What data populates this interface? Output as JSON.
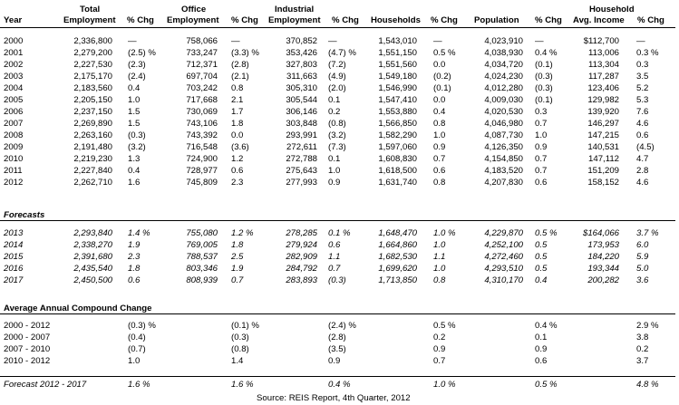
{
  "header": {
    "year": "Year",
    "total_employment": [
      "Total",
      "Employment"
    ],
    "office_employment": [
      "Office",
      "Employment"
    ],
    "industrial_employment": [
      "Industrial",
      "Employment"
    ],
    "households": "Households",
    "population": "Population",
    "household_income": [
      "Household",
      "Avg. Income"
    ],
    "pct_chg": "% Chg"
  },
  "historical": [
    {
      "year": "2000",
      "total": "2,336,800",
      "total_chg": "—",
      "office": "758,066",
      "office_chg": "—",
      "industrial": "370,852",
      "industrial_chg": "—",
      "households": "1,543,010",
      "households_chg": "—",
      "population": "4,023,910",
      "population_chg": "—",
      "income": "$112,700",
      "income_chg": "—"
    },
    {
      "year": "2001",
      "total": "2,279,200",
      "total_chg": "(2.5) %",
      "office": "733,247",
      "office_chg": "(3.3) %",
      "industrial": "353,426",
      "industrial_chg": "(4.7) %",
      "households": "1,551,150",
      "households_chg": "0.5 %",
      "population": "4,038,930",
      "population_chg": "0.4 %",
      "income": "113,006",
      "income_chg": "0.3 %"
    },
    {
      "year": "2002",
      "total": "2,227,530",
      "total_chg": "(2.3)",
      "office": "712,371",
      "office_chg": "(2.8)",
      "industrial": "327,803",
      "industrial_chg": "(7.2)",
      "households": "1,551,560",
      "households_chg": "0.0",
      "population": "4,034,720",
      "population_chg": "(0.1)",
      "income": "113,304",
      "income_chg": "0.3"
    },
    {
      "year": "2003",
      "total": "2,175,170",
      "total_chg": "(2.4)",
      "office": "697,704",
      "office_chg": "(2.1)",
      "industrial": "311,663",
      "industrial_chg": "(4.9)",
      "households": "1,549,180",
      "households_chg": "(0.2)",
      "population": "4,024,230",
      "population_chg": "(0.3)",
      "income": "117,287",
      "income_chg": "3.5"
    },
    {
      "year": "2004",
      "total": "2,183,560",
      "total_chg": "0.4",
      "office": "703,242",
      "office_chg": "0.8",
      "industrial": "305,310",
      "industrial_chg": "(2.0)",
      "households": "1,546,990",
      "households_chg": "(0.1)",
      "population": "4,012,280",
      "population_chg": "(0.3)",
      "income": "123,406",
      "income_chg": "5.2"
    },
    {
      "year": "2005",
      "total": "2,205,150",
      "total_chg": "1.0",
      "office": "717,668",
      "office_chg": "2.1",
      "industrial": "305,544",
      "industrial_chg": "0.1",
      "households": "1,547,410",
      "households_chg": "0.0",
      "population": "4,009,030",
      "population_chg": "(0.1)",
      "income": "129,982",
      "income_chg": "5.3"
    },
    {
      "year": "2006",
      "total": "2,237,150",
      "total_chg": "1.5",
      "office": "730,069",
      "office_chg": "1.7",
      "industrial": "306,146",
      "industrial_chg": "0.2",
      "households": "1,553,880",
      "households_chg": "0.4",
      "population": "4,020,530",
      "population_chg": "0.3",
      "income": "139,920",
      "income_chg": "7.6"
    },
    {
      "year": "2007",
      "total": "2,269,890",
      "total_chg": "1.5",
      "office": "743,106",
      "office_chg": "1.8",
      "industrial": "303,848",
      "industrial_chg": "(0.8)",
      "households": "1,566,850",
      "households_chg": "0.8",
      "population": "4,046,980",
      "population_chg": "0.7",
      "income": "146,297",
      "income_chg": "4.6"
    },
    {
      "year": "2008",
      "total": "2,263,160",
      "total_chg": "(0.3)",
      "office": "743,392",
      "office_chg": "0.0",
      "industrial": "293,991",
      "industrial_chg": "(3.2)",
      "households": "1,582,290",
      "households_chg": "1.0",
      "population": "4,087,730",
      "population_chg": "1.0",
      "income": "147,215",
      "income_chg": "0.6"
    },
    {
      "year": "2009",
      "total": "2,191,480",
      "total_chg": "(3.2)",
      "office": "716,548",
      "office_chg": "(3.6)",
      "industrial": "272,611",
      "industrial_chg": "(7.3)",
      "households": "1,597,060",
      "households_chg": "0.9",
      "population": "4,126,350",
      "population_chg": "0.9",
      "income": "140,531",
      "income_chg": "(4.5)"
    },
    {
      "year": "2010",
      "total": "2,219,230",
      "total_chg": "1.3",
      "office": "724,900",
      "office_chg": "1.2",
      "industrial": "272,788",
      "industrial_chg": "0.1",
      "households": "1,608,830",
      "households_chg": "0.7",
      "population": "4,154,850",
      "population_chg": "0.7",
      "income": "147,112",
      "income_chg": "4.7"
    },
    {
      "year": "2011",
      "total": "2,227,840",
      "total_chg": "0.4",
      "office": "728,977",
      "office_chg": "0.6",
      "industrial": "275,643",
      "industrial_chg": "1.0",
      "households": "1,618,500",
      "households_chg": "0.6",
      "population": "4,183,520",
      "population_chg": "0.7",
      "income": "151,209",
      "income_chg": "2.8"
    },
    {
      "year": "2012",
      "total": "2,262,710",
      "total_chg": "1.6",
      "office": "745,809",
      "office_chg": "2.3",
      "industrial": "277,993",
      "industrial_chg": "0.9",
      "households": "1,631,740",
      "households_chg": "0.8",
      "population": "4,207,830",
      "population_chg": "0.6",
      "income": "158,152",
      "income_chg": "4.6"
    }
  ],
  "forecasts_label": "Forecasts",
  "forecasts": [
    {
      "year": "2013",
      "total": "2,293,840",
      "total_chg": "1.4 %",
      "office": "755,080",
      "office_chg": "1.2 %",
      "industrial": "278,285",
      "industrial_chg": "0.1 %",
      "households": "1,648,470",
      "households_chg": "1.0 %",
      "population": "4,229,870",
      "population_chg": "0.5 %",
      "income": "$164,066",
      "income_chg": "3.7 %"
    },
    {
      "year": "2014",
      "total": "2,338,270",
      "total_chg": "1.9",
      "office": "769,005",
      "office_chg": "1.8",
      "industrial": "279,924",
      "industrial_chg": "0.6",
      "households": "1,664,860",
      "households_chg": "1.0",
      "population": "4,252,100",
      "population_chg": "0.5",
      "income": "173,953",
      "income_chg": "6.0"
    },
    {
      "year": "2015",
      "total": "2,391,680",
      "total_chg": "2.3",
      "office": "788,537",
      "office_chg": "2.5",
      "industrial": "282,909",
      "industrial_chg": "1.1",
      "households": "1,682,530",
      "households_chg": "1.1",
      "population": "4,272,460",
      "population_chg": "0.5",
      "income": "184,220",
      "income_chg": "5.9"
    },
    {
      "year": "2016",
      "total": "2,435,540",
      "total_chg": "1.8",
      "office": "803,346",
      "office_chg": "1.9",
      "industrial": "284,792",
      "industrial_chg": "0.7",
      "households": "1,699,620",
      "households_chg": "1.0",
      "population": "4,293,510",
      "population_chg": "0.5",
      "income": "193,344",
      "income_chg": "5.0"
    },
    {
      "year": "2017",
      "total": "2,450,500",
      "total_chg": "0.6",
      "office": "808,939",
      "office_chg": "0.7",
      "industrial": "283,893",
      "industrial_chg": "(0.3)",
      "households": "1,713,850",
      "households_chg": "0.8",
      "population": "4,310,170",
      "population_chg": "0.4",
      "income": "200,282",
      "income_chg": "3.6"
    }
  ],
  "average_label": "Average Annual Compound Change",
  "averages": [
    {
      "year": "2000 - 2012",
      "total_chg": "(0.3) %",
      "office_chg": "(0.1) %",
      "industrial_chg": "(2.4) %",
      "households_chg": "0.5 %",
      "population_chg": "0.4 %",
      "income_chg": "2.9 %"
    },
    {
      "year": "2000 - 2007",
      "total_chg": "(0.4)",
      "office_chg": "(0.3)",
      "industrial_chg": "(2.8)",
      "households_chg": "0.2",
      "population_chg": "0.1",
      "income_chg": "3.8"
    },
    {
      "year": "2007 - 2010",
      "total_chg": "(0.7)",
      "office_chg": "(0.8)",
      "industrial_chg": "(3.5)",
      "households_chg": "0.9",
      "population_chg": "0.9",
      "income_chg": "0.2"
    },
    {
      "year": "2010 - 2012",
      "total_chg": "1.0",
      "office_chg": "1.4",
      "industrial_chg": "0.9",
      "households_chg": "0.7",
      "population_chg": "0.6",
      "income_chg": "3.7"
    }
  ],
  "forecast_average": {
    "year": "Forecast 2012 - 2017",
    "total_chg": "1.6 %",
    "office_chg": "1.6 %",
    "industrial_chg": "0.4 %",
    "households_chg": "1.0 %",
    "population_chg": "0.5 %",
    "income_chg": "4.8 %"
  },
  "source": "Source: REIS Report, 4th Quarter, 2012"
}
